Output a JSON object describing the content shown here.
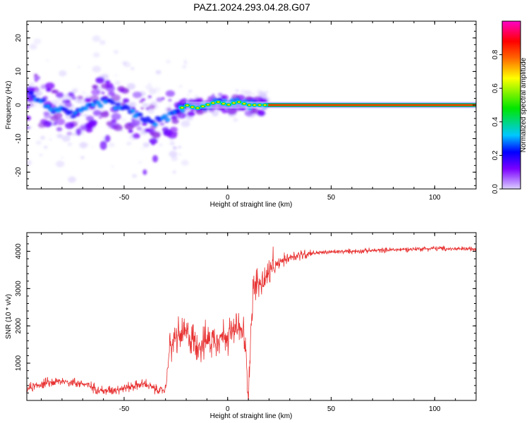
{
  "title": "PAZ1.2024.293.04.28.G07",
  "colors": {
    "snr_line": "#e83030",
    "colorbar_stops": [
      "#dcd0ff",
      "#7b00ff",
      "#0000ff",
      "#00c8ff",
      "#00e600",
      "#ffff00",
      "#ff6600",
      "#ff0000",
      "#ff00c8"
    ]
  },
  "chart_data": [
    {
      "type": "heatmap",
      "name": "spectrogram",
      "xlabel": "Height of straight line (km)",
      "ylabel": "Frequency (Hz)",
      "xlim": [
        -97,
        120
      ],
      "ylim": [
        -25,
        25
      ],
      "xticks": [
        -50,
        0,
        50,
        100
      ],
      "yticks": [
        -20,
        -10,
        0,
        10,
        20
      ],
      "colorbar": {
        "label": "Normalized spectral amplitude",
        "range": [
          0,
          1
        ],
        "ticks": [
          0.0,
          0.2,
          0.4,
          0.6,
          0.8
        ]
      },
      "peak_track": {
        "x": [
          -95,
          -90,
          -85,
          -80,
          -75,
          -70,
          -65,
          -60,
          -55,
          -50,
          -45,
          -40,
          -35,
          -30,
          -25,
          -20,
          -15,
          -10,
          -5,
          0,
          5,
          10,
          15,
          20,
          50,
          100,
          120
        ],
        "y": [
          3,
          1,
          -1,
          -2,
          -3,
          -2,
          0,
          1,
          0,
          -1,
          -3,
          -4,
          -5,
          -4,
          -2,
          0,
          -1,
          0,
          1,
          0,
          1,
          0,
          0,
          0,
          0,
          0,
          0
        ]
      }
    },
    {
      "type": "line",
      "name": "snr",
      "xlabel": "Height of straight line (km)",
      "ylabel": "SNR (10 * v/v)",
      "xlim": [
        -97,
        120
      ],
      "ylim": [
        0,
        4500
      ],
      "xticks": [
        -50,
        0,
        50,
        100
      ],
      "yticks": [
        1000,
        2000,
        3000,
        4000
      ],
      "series": [
        {
          "x": [
            -97,
            -90,
            -80,
            -70,
            -60,
            -50,
            -40,
            -35,
            -32,
            -30,
            -28,
            -25,
            -20,
            -15,
            -10,
            -5,
            0,
            5,
            8,
            10,
            12,
            14,
            16,
            20,
            25,
            30,
            40,
            50,
            60,
            70,
            80,
            90,
            100,
            110,
            120
          ],
          "y": [
            300,
            450,
            520,
            450,
            250,
            330,
            450,
            300,
            250,
            300,
            1400,
            1700,
            1800,
            1500,
            1600,
            1700,
            1750,
            1900,
            1800,
            200,
            2800,
            3200,
            3100,
            3400,
            3700,
            3850,
            3950,
            3980,
            4000,
            4020,
            4040,
            4060,
            4080,
            4060,
            4070
          ]
        }
      ]
    }
  ]
}
